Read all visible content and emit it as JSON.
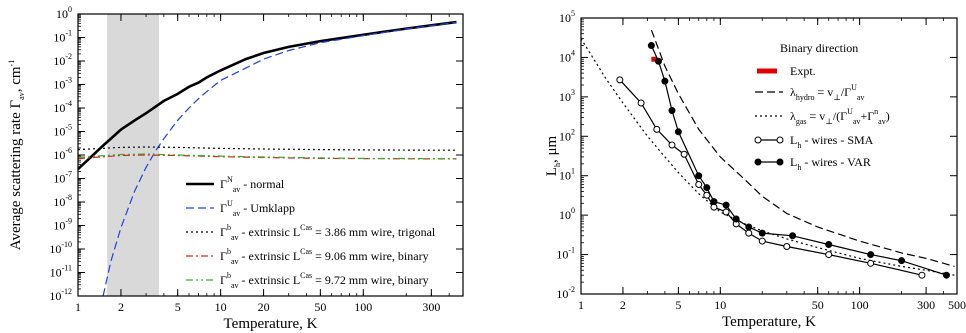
{
  "chart_data": [
    {
      "type": "line",
      "title": "",
      "xlabel": "Temperature, K",
      "ylabel": "Average scattering rate Γ",
      "ylabel_sub": "av",
      "ylabel_unit": ", cm",
      "ylabel_sup": "-1",
      "xscale": "log",
      "yscale": "log",
      "xlim": [
        1,
        500
      ],
      "ylim": [
        1e-12,
        1
      ],
      "x_ticks": [
        1,
        2,
        5,
        10,
        20,
        50,
        100,
        300
      ],
      "x_tick_labels": [
        "1",
        "2",
        "5",
        "10",
        "20",
        "50",
        "100",
        "300"
      ],
      "y_ticks_exp": [
        0,
        -1,
        -2,
        -3,
        -4,
        -5,
        -6,
        -7,
        -8,
        -9,
        -10,
        -11,
        -12
      ],
      "y_tick_base": "10",
      "shaded_band_x": [
        1.6,
        3.7
      ],
      "shaded_color": "#d9d9d9",
      "legend_position": "bottom-right",
      "series": [
        {
          "name": " - normal",
          "sym": "Γ",
          "sup": "N",
          "sub": "av",
          "color": "#000000",
          "style": "solid",
          "x": [
            1,
            1.2,
            1.5,
            2,
            2.5,
            3,
            4,
            5,
            6,
            7,
            8,
            10,
            15,
            20,
            30,
            50,
            100,
            200,
            300,
            450
          ],
          "y": [
            2.5e-07,
            7e-07,
            2.5e-06,
            1.2e-05,
            3e-05,
            6e-05,
            0.0002,
            0.0004,
            0.0008,
            0.0012,
            0.002,
            0.004,
            0.012,
            0.022,
            0.04,
            0.07,
            0.13,
            0.24,
            0.33,
            0.45
          ]
        },
        {
          "name": " - Umklapp",
          "sym": "Γ",
          "sup": "U",
          "sub": "av",
          "color": "#2040e0",
          "style": "dashed",
          "x": [
            1.5,
            1.7,
            2,
            2.5,
            3,
            3.5,
            4,
            5,
            6,
            7,
            8,
            10,
            15,
            20,
            30,
            50,
            100,
            200,
            300,
            450
          ],
          "y": [
            1e-12,
            3e-11,
            8e-10,
            3e-08,
            3e-07,
            1.5e-06,
            5e-06,
            3e-05,
            0.0001,
            0.00025,
            0.0005,
            0.0015,
            0.005,
            0.012,
            0.028,
            0.06,
            0.12,
            0.23,
            0.32,
            0.44
          ]
        },
        {
          "name": " - extrinsic L",
          "name_sup": "Cas",
          "name_tail": " = 3.86 mm wire, trigonal",
          "sym": "Γ",
          "sup": "b",
          "sub": "av",
          "color": "#000000",
          "style": "dotted",
          "x": [
            1,
            2,
            3,
            5,
            10,
            20,
            50,
            100,
            300,
            450
          ],
          "y": [
            1.7e-06,
            2.1e-06,
            2.2e-06,
            2.1e-06,
            1.9e-06,
            1.8e-06,
            1.7e-06,
            1.65e-06,
            1.6e-06,
            1.6e-06
          ]
        },
        {
          "name": " - extrinsic L",
          "name_sup": "Cas",
          "name_tail": " = 9.06 mm wire, binary",
          "sym": "Γ",
          "sup": "b",
          "sub": "av",
          "color": "#e02020",
          "style": "dashdot",
          "x": [
            1,
            2,
            3,
            5,
            10,
            20,
            50,
            100,
            300,
            450
          ],
          "y": [
            7e-07,
            9.5e-07,
            1e-06,
            9.5e-07,
            8.5e-07,
            7.8e-07,
            7.2e-07,
            7e-07,
            6.8e-07,
            6.8e-07
          ]
        },
        {
          "name": " - extrinsic L",
          "name_sup": "Cas",
          "name_tail": " = 9.72 mm wire, binary",
          "sym": "Γ",
          "sup": "b",
          "sub": "av",
          "color": "#30b030",
          "style": "dashdotdot",
          "x": [
            1,
            2,
            3,
            5,
            10,
            20,
            50,
            100,
            300,
            450
          ],
          "y": [
            8e-07,
            1.05e-06,
            1.1e-06,
            1e-06,
            9e-07,
            8.2e-07,
            7.5e-07,
            7.2e-07,
            7e-07,
            7e-07
          ]
        }
      ]
    },
    {
      "type": "line",
      "title": "",
      "xlabel": "Temperature, K",
      "ylabel": "L",
      "ylabel_sub": "h",
      "ylabel_unit": ", μm",
      "xscale": "log",
      "yscale": "log",
      "xlim": [
        1,
        500
      ],
      "ylim": [
        0.01,
        100000
      ],
      "x_ticks": [
        1,
        2,
        5,
        10,
        50,
        100,
        300,
        500
      ],
      "x_tick_labels": [
        "1",
        "2",
        "5",
        "10",
        "50",
        "100",
        "300",
        "500"
      ],
      "y_ticks_exp": [
        5,
        4,
        3,
        2,
        1,
        0,
        -1,
        -2
      ],
      "y_tick_base": "10",
      "legend_title": "Binary direction",
      "legend_position": "top-right",
      "series": [
        {
          "name": "Expt.",
          "color": "#e00000",
          "style": "bar",
          "x": [
            3.2,
            3.5
          ],
          "y": [
            9000,
            9000
          ]
        },
        {
          "name": "hydro",
          "label_prefix": "λ",
          "label_eq": " = v",
          "label_eq_sub": "⊥",
          "label_eq_tail": "/Γ",
          "label_eq_tail_sup": "U",
          "label_eq_tail_sub": "av",
          "color": "#000000",
          "style": "dashed",
          "x": [
            3.2,
            4,
            5,
            7,
            10,
            15,
            20,
            30,
            50,
            100,
            200,
            300,
            480
          ],
          "y": [
            50000,
            6000,
            1200,
            150,
            30,
            8,
            3,
            1.1,
            0.5,
            0.22,
            0.11,
            0.08,
            0.05
          ]
        },
        {
          "name": "gas",
          "label_prefix": "λ",
          "label_eq": " = v",
          "label_eq_sub": "⊥",
          "label_eq_tail": "/(Γ",
          "label_eq_tail_sup": "U",
          "label_eq_tail_sub": "av",
          "label_eq_tail2": "+Γ",
          "label_eq_tail2_sup": "n",
          "label_eq_tail2_sub": "av",
          "label_eq_end": ")",
          "color": "#000000",
          "style": "dotted",
          "x": [
            1,
            1.5,
            2,
            3,
            4,
            5,
            7,
            10,
            15,
            20,
            30,
            50,
            100,
            200,
            300,
            480
          ],
          "y": [
            30000,
            3000,
            700,
            100,
            30,
            12,
            3.5,
            1.2,
            0.6,
            0.4,
            0.25,
            0.15,
            0.08,
            0.05,
            0.04,
            0.03
          ]
        },
        {
          "name": " - wires - SMA",
          "label_prefix": "L",
          "label_sub": "h",
          "color": "#000000",
          "style": "open",
          "x": [
            1.9,
            2.7,
            3.5,
            4.5,
            5.5,
            7,
            8,
            9,
            11,
            13,
            16,
            20,
            30,
            60,
            120,
            280
          ],
          "y": [
            2700,
            700,
            150,
            60,
            35,
            6,
            3.2,
            1.6,
            1.2,
            0.6,
            0.35,
            0.22,
            0.16,
            0.1,
            0.06,
            0.03
          ]
        },
        {
          "name": " - wires - VAR",
          "label_prefix": "L",
          "label_sub": "h",
          "color": "#000000",
          "style": "filled",
          "x": [
            3.2,
            3.6,
            4,
            4.5,
            5,
            7,
            8,
            9,
            11,
            13,
            16,
            20,
            33,
            60,
            120,
            200,
            420
          ],
          "y": [
            20000,
            8000,
            2500,
            450,
            130,
            10,
            5,
            2.2,
            1.8,
            0.8,
            0.5,
            0.35,
            0.3,
            0.18,
            0.1,
            0.07,
            0.03
          ]
        }
      ]
    }
  ]
}
